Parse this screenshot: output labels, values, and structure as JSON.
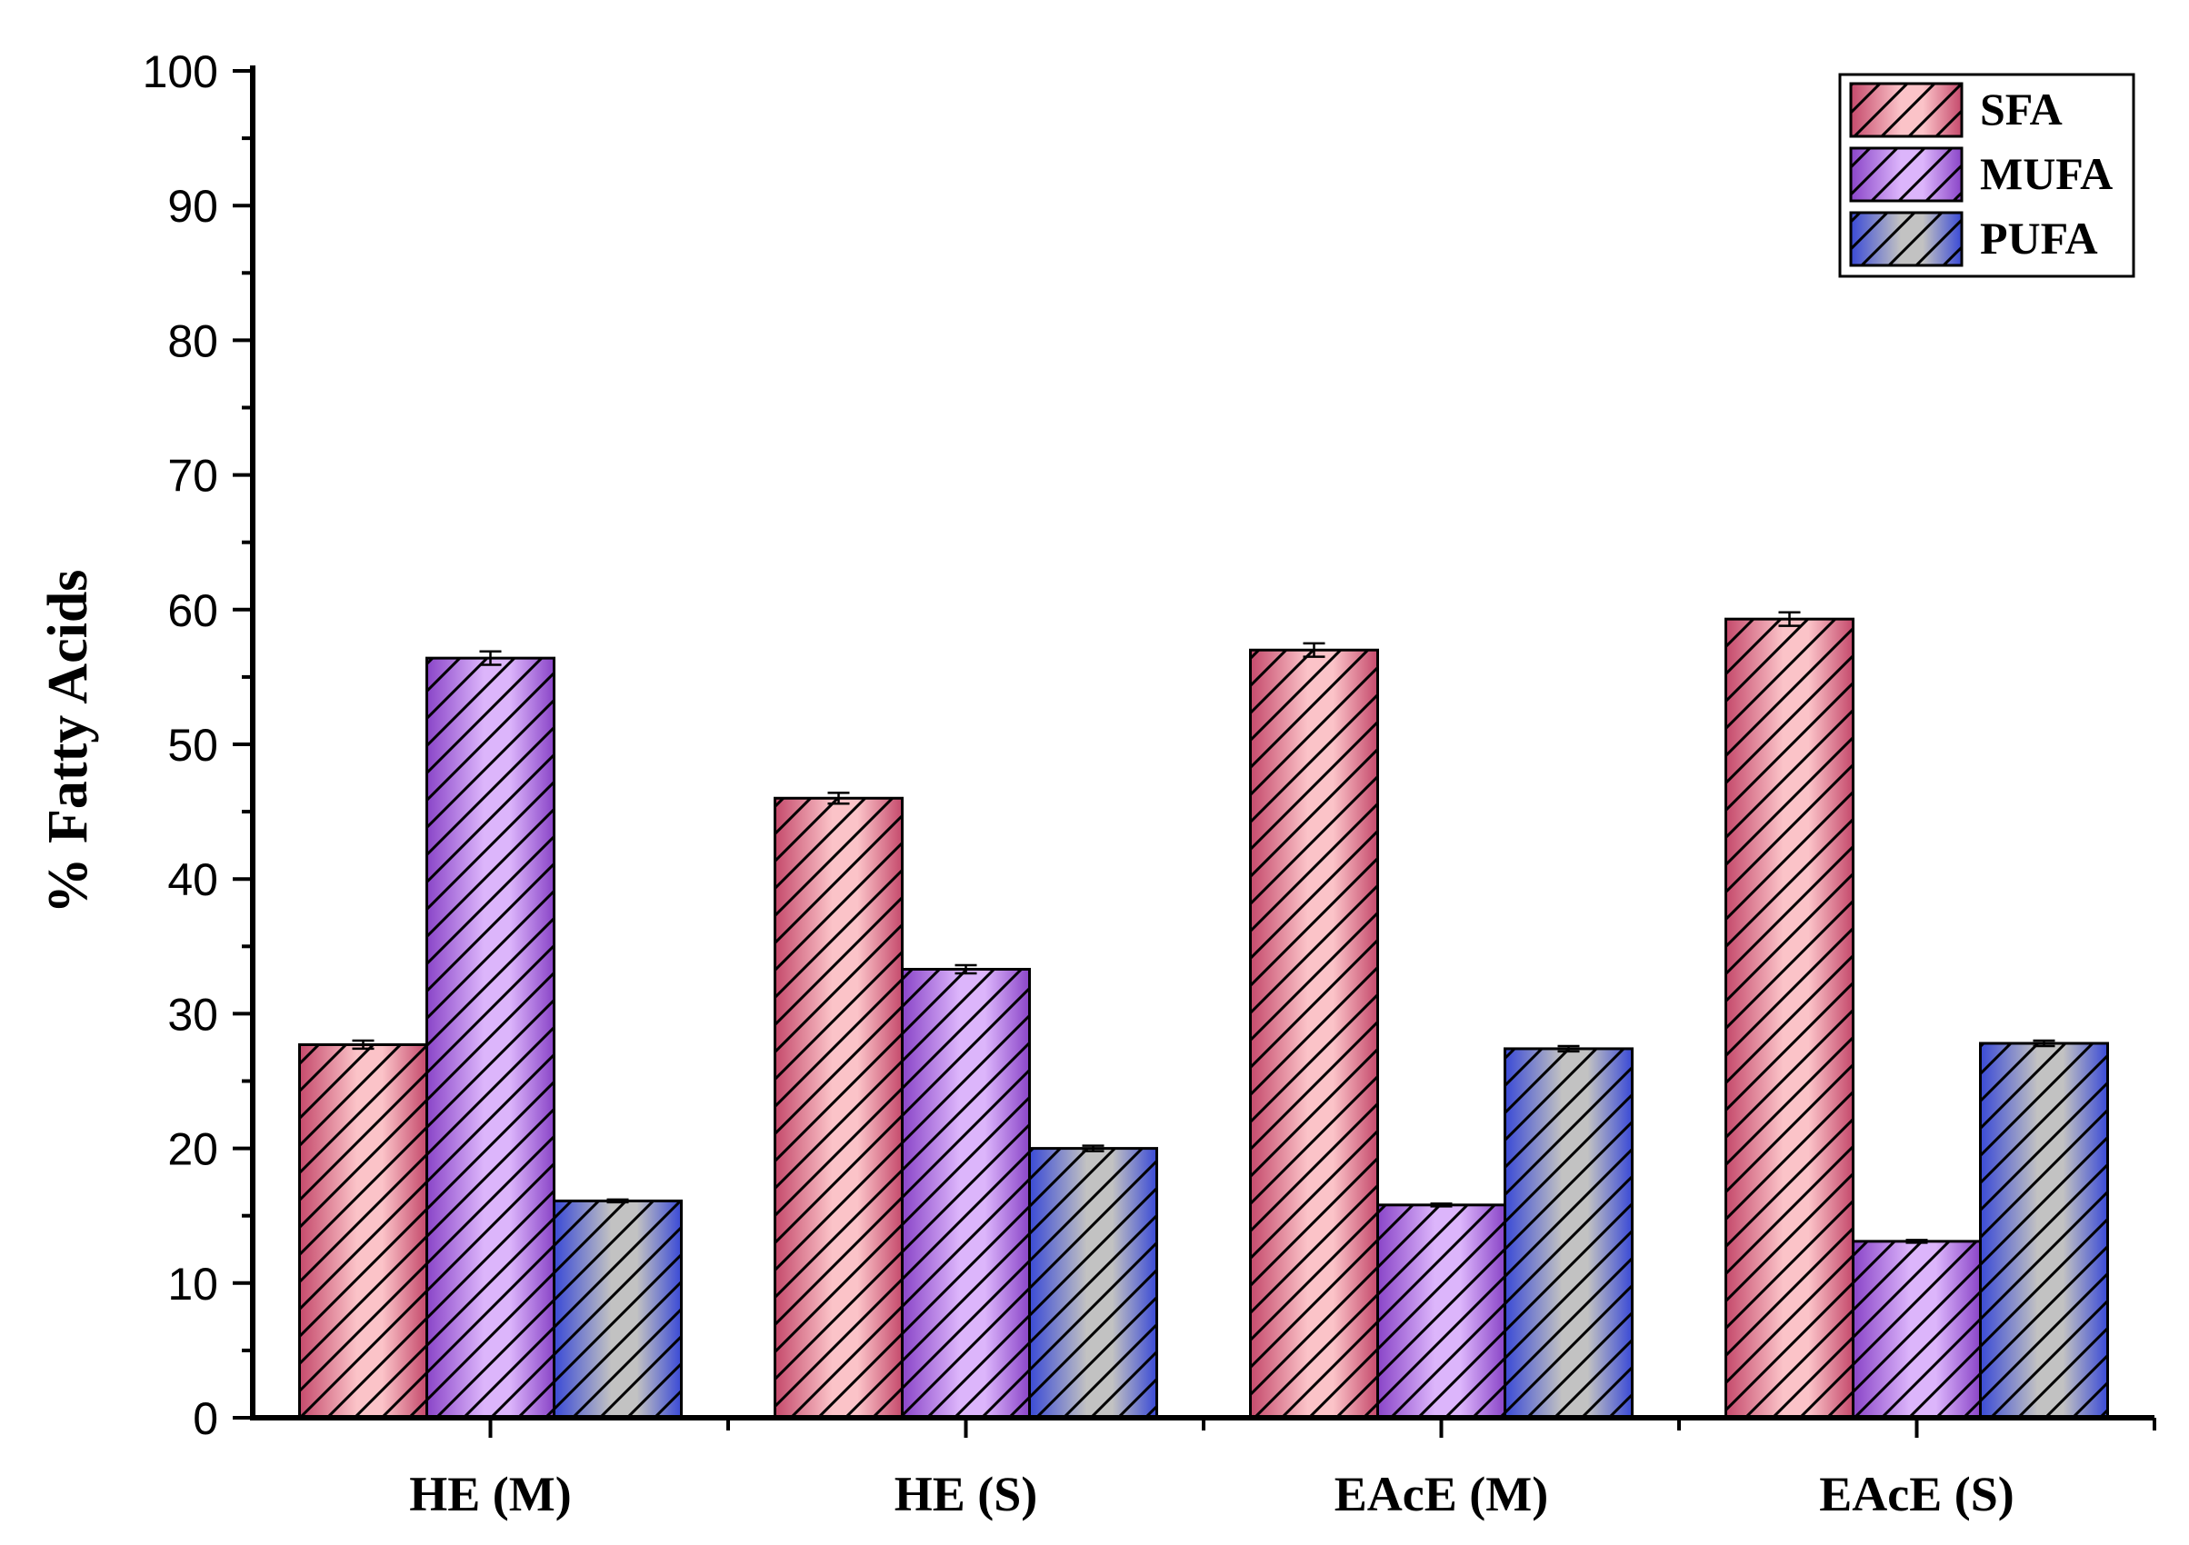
{
  "chart_data": {
    "type": "bar",
    "title": "",
    "xlabel": "",
    "ylabel": "% Fatty Acids",
    "ylim": [
      0,
      100
    ],
    "yticks": [
      0,
      10,
      20,
      30,
      40,
      50,
      60,
      70,
      80,
      90,
      100
    ],
    "categories": [
      "HE (M)",
      "HE (S)",
      "EAcE (M)",
      "EAcE (S)"
    ],
    "series": [
      {
        "name": "SFA",
        "values": [
          27.7,
          46.0,
          57.0,
          59.3
        ],
        "errors": [
          0.3,
          0.4,
          0.5,
          0.5
        ],
        "colors": {
          "light": "#fbc3c8",
          "dark": "#c54a6c"
        }
      },
      {
        "name": "MUFA",
        "values": [
          56.4,
          33.3,
          15.8,
          13.1
        ],
        "errors": [
          0.5,
          0.3,
          0.1,
          0.1
        ],
        "colors": {
          "light": "#dcb5fb",
          "dark": "#8a45c8"
        }
      },
      {
        "name": "PUFA",
        "values": [
          16.1,
          20.0,
          27.4,
          27.8
        ],
        "errors": [
          0.1,
          0.2,
          0.2,
          0.2
        ],
        "colors": {
          "light": "#c2c2c2",
          "dark": "#3a4ad6"
        }
      }
    ],
    "pattern": "diagonal-hatch",
    "legend_position": "top-right",
    "grid": false
  }
}
